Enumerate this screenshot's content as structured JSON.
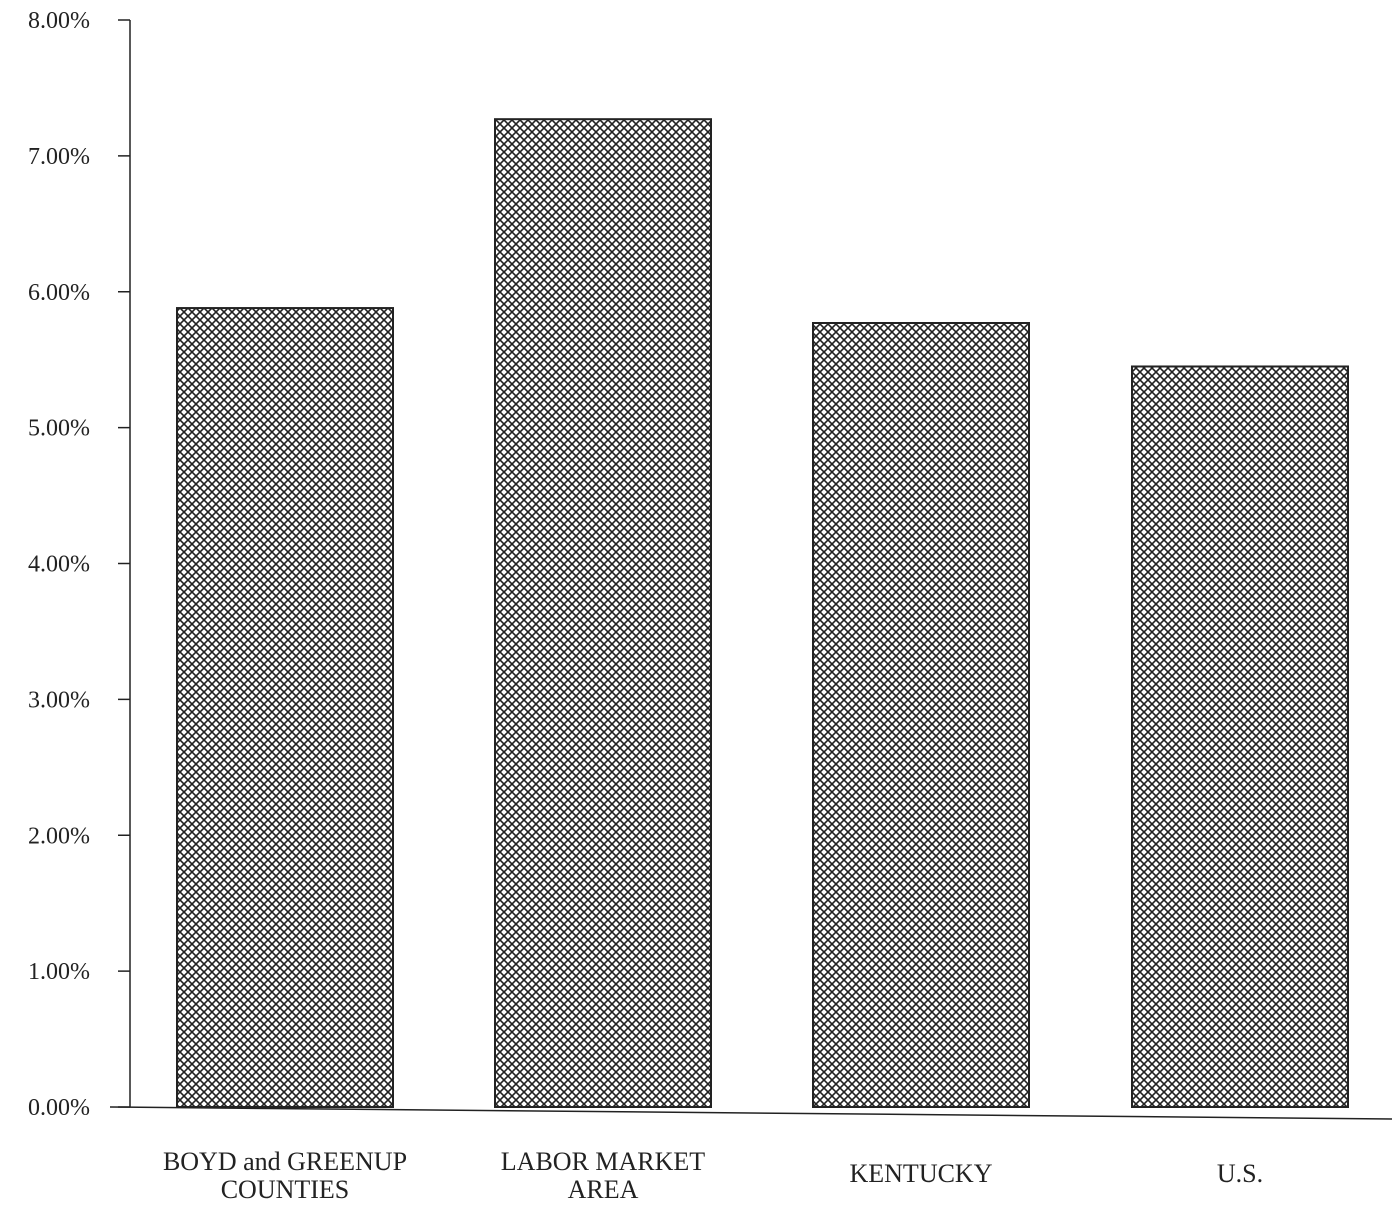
{
  "chart_data": {
    "type": "bar",
    "title": "",
    "xlabel": "",
    "ylabel": "",
    "categories": [
      [
        "BOYD and GREENUP",
        "COUNTIES"
      ],
      [
        "LABOR MARKET",
        "AREA"
      ],
      [
        "KENTUCKY"
      ],
      [
        "U.S."
      ]
    ],
    "values": [
      5.88,
      7.27,
      5.77,
      5.45
    ],
    "ylim": [
      0,
      8
    ],
    "yticks": [
      0,
      1,
      2,
      3,
      4,
      5,
      6,
      7,
      8
    ],
    "ytick_labels": [
      "0.00%",
      "1.00%",
      "2.00%",
      "3.00%",
      "4.00%",
      "5.00%",
      "6.00%",
      "7.00%",
      "8.00%"
    ],
    "grid": false,
    "legend": "none",
    "colors": {
      "bar_fill_pattern": "crosshatch",
      "ink": "#222222",
      "background": "#ffffff"
    }
  }
}
